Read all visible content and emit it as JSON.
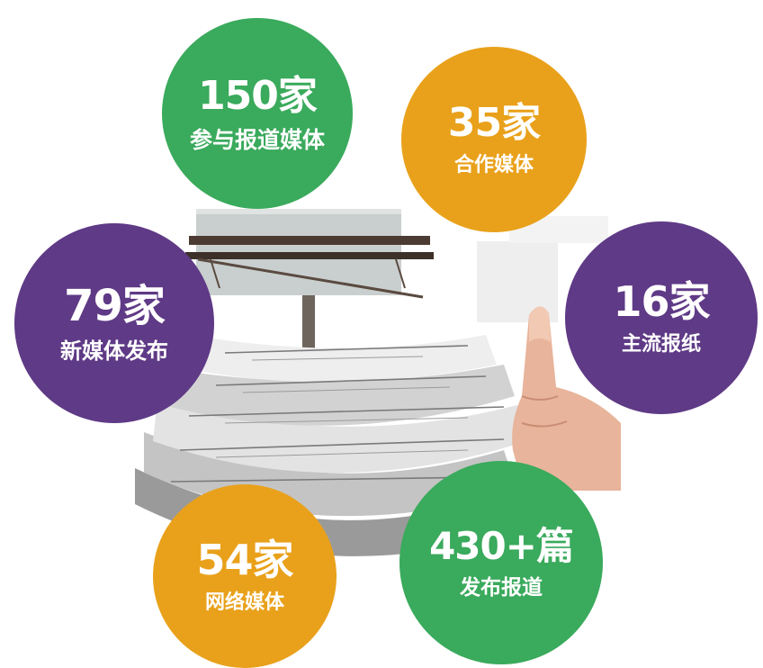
{
  "colors": {
    "green": "#3aaa5c",
    "orange": "#e9a11b",
    "purple": "#5f3a86"
  },
  "stats": [
    {
      "value": "150家",
      "label": "参与报道媒体",
      "color": "green"
    },
    {
      "value": "35家",
      "label": "合作媒体",
      "color": "orange"
    },
    {
      "value": "79家",
      "label": "新媒体发布",
      "color": "purple"
    },
    {
      "value": "16家",
      "label": "主流报纸",
      "color": "purple"
    },
    {
      "value": "54家",
      "label": "网络媒体",
      "color": "orange"
    },
    {
      "value": "430+篇",
      "label": "发布报道",
      "color": "green"
    }
  ],
  "illustration": {
    "icons": [
      "billboard-icon",
      "newspaper-stack-icon",
      "pointing-hand-icon"
    ]
  }
}
